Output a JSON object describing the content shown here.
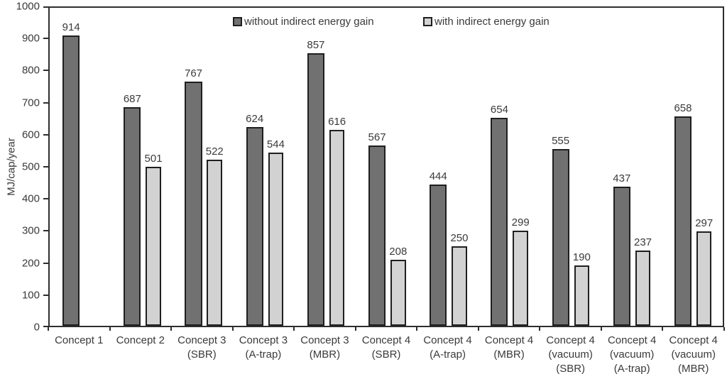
{
  "chart_data": {
    "type": "bar",
    "title": "",
    "xlabel": "",
    "ylabel": "MJ/cap/year",
    "ylim": [
      0,
      1000
    ],
    "yticks": [
      0,
      100,
      200,
      300,
      400,
      500,
      600,
      700,
      800,
      900,
      1000
    ],
    "grid": false,
    "legend_position": "top-inside",
    "categories": [
      [
        "Concept 1"
      ],
      [
        "Concept 2"
      ],
      [
        "Concept 3",
        "(SBR)"
      ],
      [
        "Concept 3",
        "(A-trap)"
      ],
      [
        "Concept 3",
        "(MBR)"
      ],
      [
        "Concept 4",
        "(SBR)"
      ],
      [
        "Concept 4",
        "(A-trap)"
      ],
      [
        "Concept 4",
        "(MBR)"
      ],
      [
        "Concept 4",
        "(vacuum)",
        "(SBR)"
      ],
      [
        "Concept 4",
        "(vacuum)",
        "(A-trap)"
      ],
      [
        "Concept 4",
        "(vacuum)",
        "(MBR)"
      ]
    ],
    "series": [
      {
        "name": "without indirect energy gain",
        "color": "#717171",
        "border_color": "#1f1f1f",
        "values": [
          914,
          687,
          767,
          624,
          857,
          567,
          444,
          654,
          555,
          437,
          658
        ]
      },
      {
        "name": "with indirect energy gain",
        "color": "#d2d2d2",
        "border_color": "#1f1f1f",
        "values": [
          null,
          501,
          522,
          544,
          616,
          208,
          250,
          299,
          190,
          237,
          297
        ]
      }
    ]
  },
  "colors": {
    "axis": "#2e2e2e",
    "text": "#3a3a3a",
    "background": "#ffffff"
  }
}
